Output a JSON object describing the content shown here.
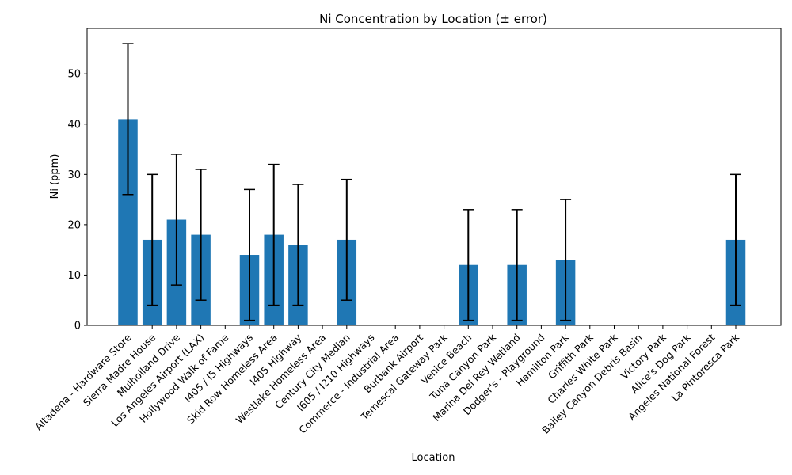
{
  "chart_data": {
    "type": "bar",
    "title": "Ni Concentration by Location (± error)",
    "xlabel": "Location",
    "ylabel": "Ni (ppm)",
    "ylim": [
      0,
      59
    ],
    "yticks": [
      0,
      10,
      20,
      30,
      40,
      50
    ],
    "grid": false,
    "bar_color": "#1f77b4",
    "error_color": "#000000",
    "categories": [
      "Altadena - Hardware Store",
      "Sierra Madre House",
      "Mulholland Drive",
      "Los Angeles Airport (LAX)",
      "Hollywood Walk of Fame",
      "I405 / I5 Highways",
      "Skid Row Homeless Area",
      "I405 Highway",
      "Westlake Homeless Area",
      "Century City Median",
      "I605 / I210 Highways",
      "Commerce - Industrial Area",
      "Burbank Airport",
      "Temescal Gateway Park",
      "Venice Beach",
      "Tuna Canyon Park",
      "Marina Del Rey Wetland",
      "Dodger's - Playground",
      "Hamilton Park",
      "Griffith Park",
      "Charles White Park",
      "Bailey Canyon Debris Basin",
      "Victory Park",
      "Alice's Dog Park",
      "Angeles National Forest",
      "La Pintoresca Park"
    ],
    "values": [
      41,
      17,
      21,
      18,
      null,
      14,
      18,
      16,
      null,
      17,
      null,
      null,
      null,
      null,
      12,
      null,
      12,
      null,
      13,
      null,
      null,
      null,
      null,
      null,
      null,
      17
    ],
    "errors": [
      15,
      13,
      13,
      13,
      null,
      13,
      14,
      12,
      null,
      12,
      null,
      null,
      null,
      null,
      11,
      null,
      11,
      null,
      12,
      null,
      null,
      null,
      null,
      null,
      null,
      13
    ]
  }
}
